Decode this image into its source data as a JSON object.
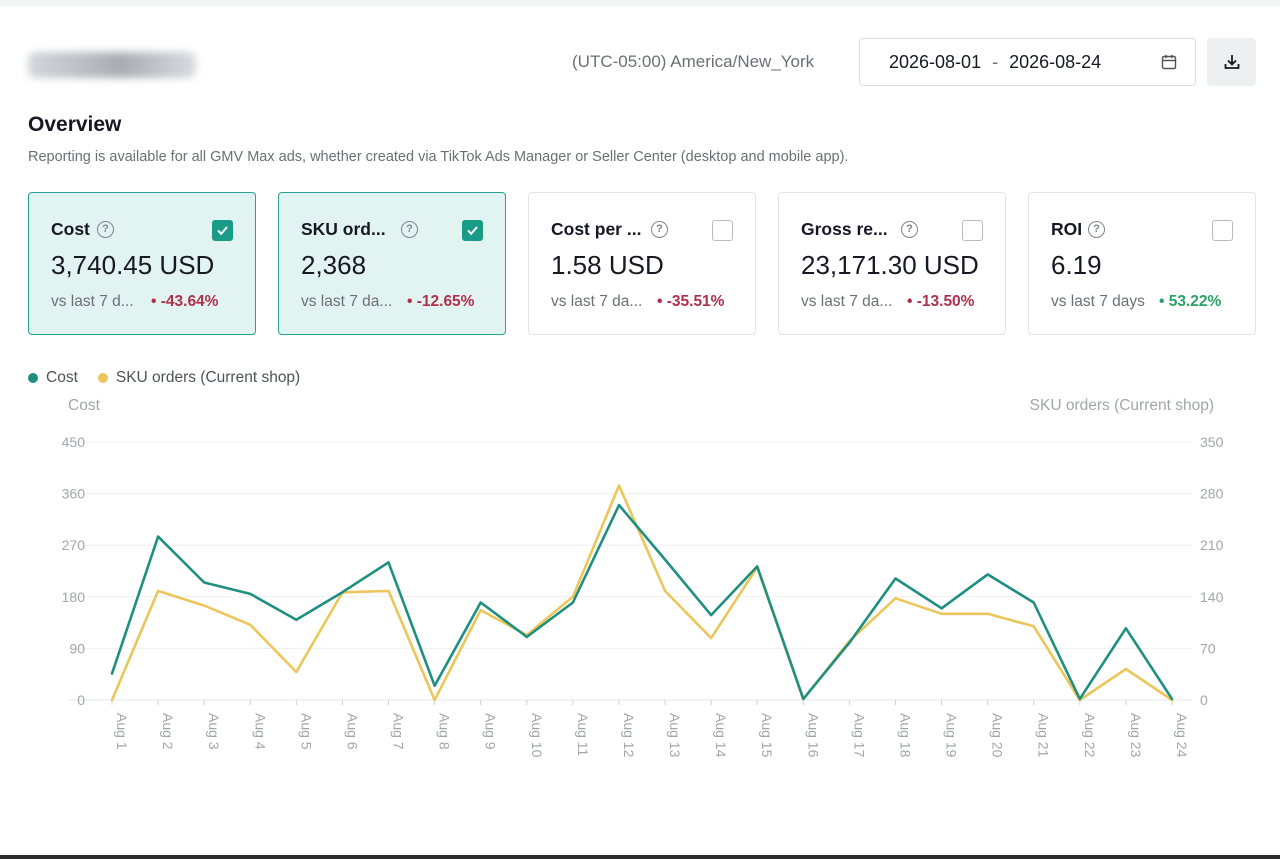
{
  "header": {
    "timezone": "(UTC-05:00) America/New_York",
    "date_start": "2026-08-01",
    "date_separator": "-",
    "date_end": "2026-08-24"
  },
  "overview": {
    "title": "Overview",
    "description": "Reporting is available for all GMV Max ads, whether created via TikTok Ads Manager or Seller Center (desktop and mobile app)."
  },
  "metrics": [
    {
      "label": "Cost",
      "value": "3,740.45 USD",
      "vs": "vs last 7 d...",
      "change": "• -43.64%",
      "checked": true
    },
    {
      "label": "SKU ord...",
      "value": "2,368",
      "vs": "vs last 7 da...",
      "change": "• -12.65%",
      "checked": true
    },
    {
      "label": "Cost per ...",
      "value": "1.58 USD",
      "vs": "vs last 7 da...",
      "change": "• -35.51%",
      "checked": false
    },
    {
      "label": "Gross re...",
      "value": "23,171.30 USD",
      "vs": "vs last 7 da...",
      "change": "• -13.50%",
      "checked": false
    },
    {
      "label": "ROI",
      "value": "6.19",
      "vs": "vs last 7 days",
      "change": "• 53.22%",
      "checked": false
    }
  ],
  "colors": {
    "accent": "#1a9b87",
    "cost_line": "#1f8f80",
    "sku_line": "#ecc65a",
    "negative": "#b0304c",
    "positive": "#27a364"
  },
  "chart_data": {
    "type": "line",
    "legend": [
      "Cost",
      "SKU orders (Current shop)"
    ],
    "legend_position": "top-left",
    "y_left_label": "Cost",
    "y_right_label": "SKU orders (Current shop)",
    "y_left_ticks": [
      0,
      90,
      180,
      270,
      360,
      450
    ],
    "y_right_ticks": [
      0,
      70,
      140,
      210,
      280,
      350
    ],
    "y_left_range": [
      0,
      450
    ],
    "y_right_range": [
      0,
      350
    ],
    "grid": true,
    "categories": [
      "Aug 1",
      "Aug 2",
      "Aug 3",
      "Aug 4",
      "Aug 5",
      "Aug 6",
      "Aug 7",
      "Aug 8",
      "Aug 9",
      "Aug 10",
      "Aug 11",
      "Aug 12",
      "Aug 13",
      "Aug 14",
      "Aug 15",
      "Aug 16",
      "Aug 17",
      "Aug 18",
      "Aug 19",
      "Aug 20",
      "Aug 21",
      "Aug 22",
      "Aug 23",
      "Aug 24"
    ],
    "series": [
      {
        "name": "Cost",
        "axis": "left",
        "values": [
          46,
          285,
          205,
          185,
          140,
          188,
          240,
          25,
          170,
          110,
          170,
          340,
          245,
          148,
          233,
          2,
          100,
          212,
          160,
          219,
          170,
          2,
          125,
          2
        ]
      },
      {
        "name": "SKU orders (Current shop)",
        "axis": "right",
        "values": [
          0,
          148,
          128,
          102,
          38,
          146,
          148,
          0,
          122,
          88,
          140,
          291,
          148,
          84,
          180,
          1,
          80,
          138,
          117,
          117,
          100,
          0,
          42,
          0
        ]
      }
    ]
  }
}
